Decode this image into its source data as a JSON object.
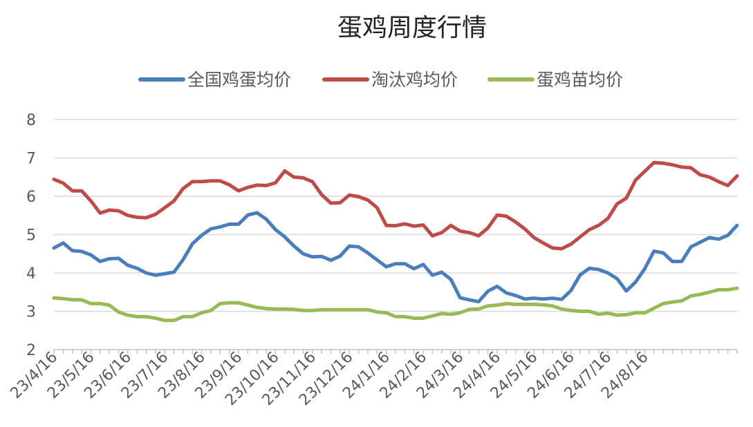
{
  "chart_data": {
    "type": "line",
    "title": "蛋鸡周度行情",
    "xlabel": "",
    "ylabel": "",
    "ylim": [
      2,
      8
    ],
    "yticks": [
      2,
      3,
      4,
      5,
      6,
      7,
      8
    ],
    "grid": "horizontal",
    "legend_position": "top",
    "x_tick_labels": [
      "23/4/16",
      "23/5/16",
      "23/6/16",
      "23/7/16",
      "23/8/16",
      "23/9/16",
      "23/10/16",
      "23/11/16",
      "23/12/16",
      "24/1/16",
      "24/2/16",
      "24/3/16",
      "24/4/16",
      "24/5/16",
      "24/6/16",
      "24/7/16",
      "24/8/16"
    ],
    "series": [
      {
        "name": "全国鸡蛋均价",
        "color": "#4a7ebb",
        "values": [
          4.65,
          4.78,
          4.58,
          4.56,
          4.47,
          4.3,
          4.37,
          4.38,
          4.2,
          4.12,
          4.0,
          3.94,
          3.98,
          4.02,
          4.35,
          4.76,
          4.98,
          5.15,
          5.2,
          5.27,
          5.27,
          5.51,
          5.57,
          5.4,
          5.13,
          4.94,
          4.7,
          4.5,
          4.42,
          4.43,
          4.33,
          4.44,
          4.7,
          4.68,
          4.52,
          4.34,
          4.16,
          4.24,
          4.24,
          4.11,
          4.22,
          3.94,
          4.02,
          3.83,
          3.35,
          3.3,
          3.25,
          3.52,
          3.65,
          3.48,
          3.41,
          3.32,
          3.34,
          3.32,
          3.34,
          3.31,
          3.54,
          3.95,
          4.12,
          4.09,
          4.0,
          3.85,
          3.53,
          3.76,
          4.11,
          4.57,
          4.52,
          4.3,
          4.3,
          4.68,
          4.8,
          4.92,
          4.88,
          4.98,
          5.24
        ]
      },
      {
        "name": "淘汰鸡均价",
        "color": "#be4b48",
        "values": [
          6.44,
          6.34,
          6.14,
          6.14,
          5.88,
          5.56,
          5.64,
          5.62,
          5.5,
          5.45,
          5.44,
          5.53,
          5.7,
          5.88,
          6.2,
          6.38,
          6.38,
          6.4,
          6.4,
          6.3,
          6.14,
          6.23,
          6.29,
          6.28,
          6.35,
          6.66,
          6.5,
          6.48,
          6.38,
          6.04,
          5.82,
          5.83,
          6.03,
          5.99,
          5.9,
          5.7,
          5.24,
          5.23,
          5.28,
          5.22,
          5.25,
          4.97,
          5.05,
          5.24,
          5.09,
          5.05,
          4.97,
          5.17,
          5.51,
          5.48,
          5.33,
          5.15,
          4.92,
          4.78,
          4.65,
          4.63,
          4.75,
          4.94,
          5.13,
          5.24,
          5.42,
          5.8,
          5.95,
          6.42,
          6.65,
          6.88,
          6.86,
          6.82,
          6.76,
          6.74,
          6.56,
          6.5,
          6.38,
          6.28,
          6.53
        ]
      },
      {
        "name": "蛋鸡苗均价",
        "color": "#98b954",
        "values": [
          3.35,
          3.33,
          3.3,
          3.3,
          3.2,
          3.2,
          3.16,
          2.98,
          2.9,
          2.86,
          2.86,
          2.82,
          2.76,
          2.76,
          2.86,
          2.86,
          2.96,
          3.02,
          3.2,
          3.22,
          3.22,
          3.16,
          3.1,
          3.07,
          3.06,
          3.06,
          3.05,
          3.02,
          3.02,
          3.04,
          3.04,
          3.04,
          3.04,
          3.04,
          3.04,
          2.98,
          2.96,
          2.86,
          2.86,
          2.82,
          2.82,
          2.88,
          2.94,
          2.92,
          2.96,
          3.05,
          3.06,
          3.14,
          3.16,
          3.2,
          3.18,
          3.18,
          3.18,
          3.17,
          3.14,
          3.06,
          3.02,
          3.0,
          3.0,
          2.92,
          2.95,
          2.9,
          2.91,
          2.96,
          2.96,
          3.08,
          3.2,
          3.24,
          3.27,
          3.4,
          3.44,
          3.5,
          3.56,
          3.56,
          3.6
        ]
      }
    ]
  }
}
